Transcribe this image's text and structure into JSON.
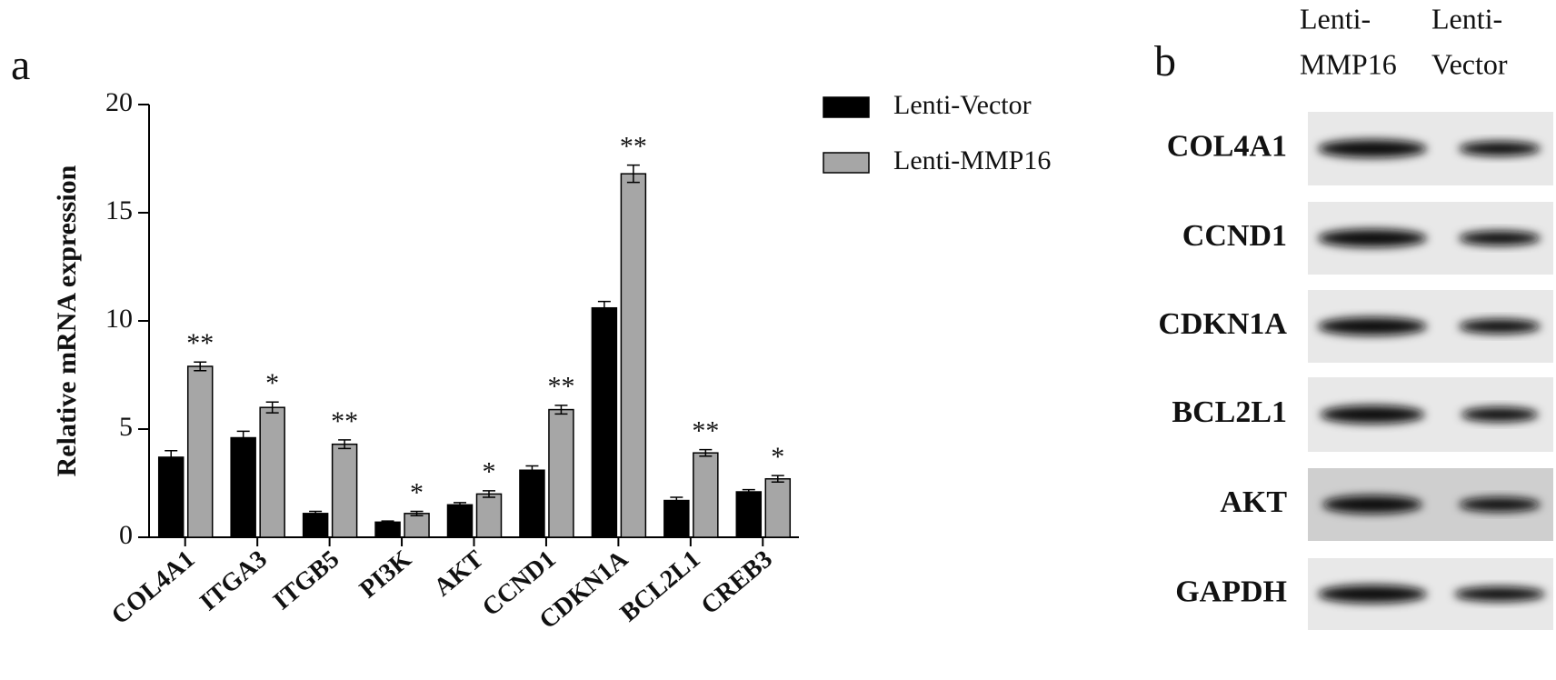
{
  "panel_labels": [
    "a",
    "b"
  ],
  "chart_data": {
    "type": "bar",
    "y_label": "Relative mRNA expression",
    "categories": [
      "COL4A1",
      "ITGA3",
      "ITGB5",
      "PI3K",
      "AKT",
      "CCND1",
      "CDKN1A",
      "BCL2L1",
      "CREB3"
    ],
    "series": [
      {
        "name": "Lenti-Vector",
        "color": "#000000",
        "values": [
          3.7,
          4.6,
          1.1,
          0.7,
          1.5,
          3.1,
          10.6,
          1.7,
          2.1
        ],
        "errors": [
          0.3,
          0.3,
          0.1,
          0.05,
          0.1,
          0.2,
          0.3,
          0.15,
          0.1
        ]
      },
      {
        "name": "Lenti-MMP16",
        "color": "#a6a6a6",
        "values": [
          7.9,
          6.0,
          4.3,
          1.1,
          2.0,
          5.9,
          16.8,
          3.9,
          2.7
        ],
        "errors": [
          0.2,
          0.25,
          0.2,
          0.1,
          0.15,
          0.2,
          0.4,
          0.15,
          0.15
        ]
      }
    ],
    "significance": [
      "**",
      "*",
      "**",
      "*",
      "*",
      "**",
      "**",
      "**",
      "*"
    ],
    "ylim": [
      0,
      20
    ],
    "yticks": [
      0,
      5,
      10,
      15,
      20
    ],
    "legend": "upper right"
  },
  "blot": {
    "columns": [
      [
        "Lenti-",
        "MMP16"
      ],
      [
        "Lenti-",
        "Vector"
      ]
    ],
    "rows": [
      "COL4A1",
      "CCND1",
      "CDKN1A",
      "BCL2L1",
      "AKT",
      "GAPDH"
    ]
  }
}
